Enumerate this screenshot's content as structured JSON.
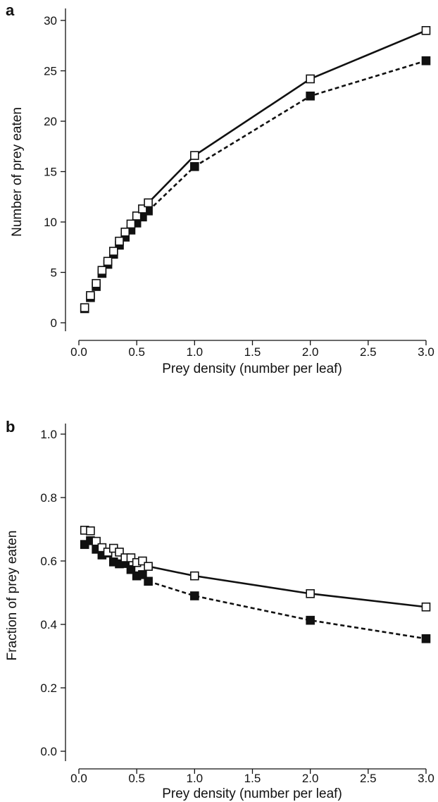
{
  "figure": {
    "background": "#ffffff",
    "ink": "#111111"
  },
  "chart_data": [
    {
      "panel": "a",
      "type": "line",
      "xlabel": "Prey density (number per leaf)",
      "ylabel": "Number of prey eaten",
      "xlim": [
        0,
        3.0
      ],
      "ylim": [
        0,
        30
      ],
      "x_ticks": [
        "0.0",
        "0.5",
        "1.0",
        "1.5",
        "2.0",
        "2.5",
        "3.0"
      ],
      "y_ticks": [
        "0",
        "5",
        "10",
        "15",
        "20",
        "25",
        "30"
      ],
      "grid": false,
      "x": [
        0.05,
        0.1,
        0.15,
        0.2,
        0.25,
        0.3,
        0.35,
        0.4,
        0.45,
        0.5,
        0.55,
        0.6,
        1.0,
        2.0,
        3.0
      ],
      "series": [
        {
          "marker": "open-square",
          "line_style": "solid",
          "values": [
            1.5,
            2.7,
            3.9,
            5.2,
            6.1,
            7.1,
            8.1,
            9.0,
            9.8,
            10.6,
            11.3,
            11.9,
            16.6,
            24.2,
            29.0
          ]
        },
        {
          "marker": "filled-square",
          "line_style": "dashed",
          "values": [
            1.4,
            2.5,
            3.6,
            4.9,
            5.8,
            6.8,
            7.7,
            8.5,
            9.2,
            9.9,
            10.5,
            11.1,
            15.5,
            22.5,
            26.0
          ]
        }
      ]
    },
    {
      "panel": "b",
      "type": "line",
      "xlabel": "Prey density (number per leaf)",
      "ylabel": "Fraction of prey eaten",
      "xlim": [
        0,
        3.0
      ],
      "ylim": [
        0,
        1.0
      ],
      "x_ticks": [
        "0.0",
        "0.5",
        "1.0",
        "1.5",
        "2.0",
        "2.5",
        "3.0"
      ],
      "y_ticks": [
        "0.0",
        "0.2",
        "0.4",
        "0.6",
        "0.8",
        "1.0"
      ],
      "grid": false,
      "x": [
        0.05,
        0.1,
        0.15,
        0.2,
        0.25,
        0.3,
        0.35,
        0.4,
        0.45,
        0.5,
        0.55,
        0.6,
        1.0,
        2.0,
        3.0
      ],
      "series": [
        {
          "marker": "open-square",
          "line_style": "solid",
          "values": [
            0.697,
            0.695,
            0.662,
            0.642,
            0.628,
            0.64,
            0.628,
            0.61,
            0.61,
            0.595,
            0.6,
            0.583,
            0.553,
            0.497,
            0.455
          ]
        },
        {
          "marker": "filled-square",
          "line_style": "dashed",
          "values": [
            0.652,
            0.664,
            0.637,
            0.619,
            0.625,
            0.597,
            0.591,
            0.592,
            0.573,
            0.553,
            0.557,
            0.536,
            0.49,
            0.413,
            0.355
          ]
        }
      ]
    }
  ]
}
